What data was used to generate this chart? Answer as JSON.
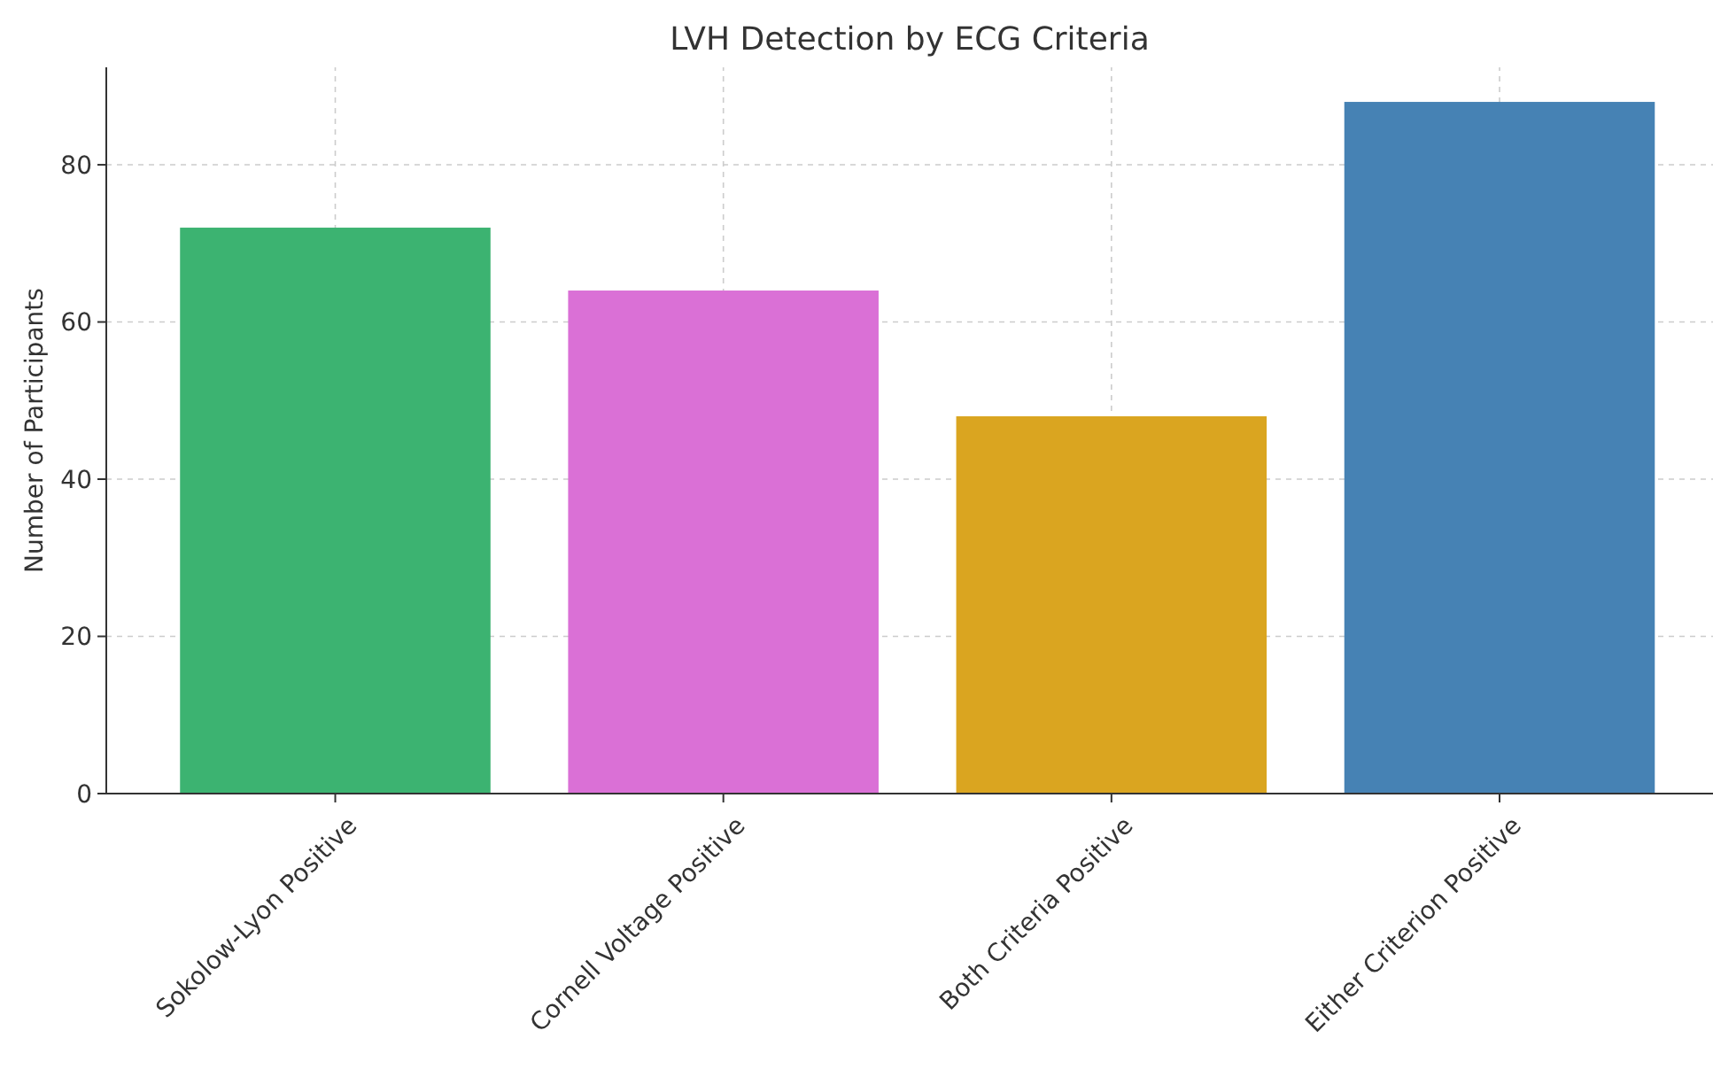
{
  "chart_data": {
    "type": "bar",
    "title": "LVH Detection by ECG Criteria",
    "ylabel": "Number of Participants",
    "categories": [
      "Sokolow-Lyon Positive",
      "Cornell Voltage Positive",
      "Both Criteria Positive",
      "Either Criterion Positive"
    ],
    "values": [
      72,
      64,
      48,
      88
    ],
    "colors": [
      "#3cb371",
      "#da70d6",
      "#daa520",
      "#4682b4"
    ],
    "ylim": [
      0,
      92.4
    ],
    "yticks": [
      0,
      20,
      40,
      60,
      80
    ],
    "grid": true
  }
}
